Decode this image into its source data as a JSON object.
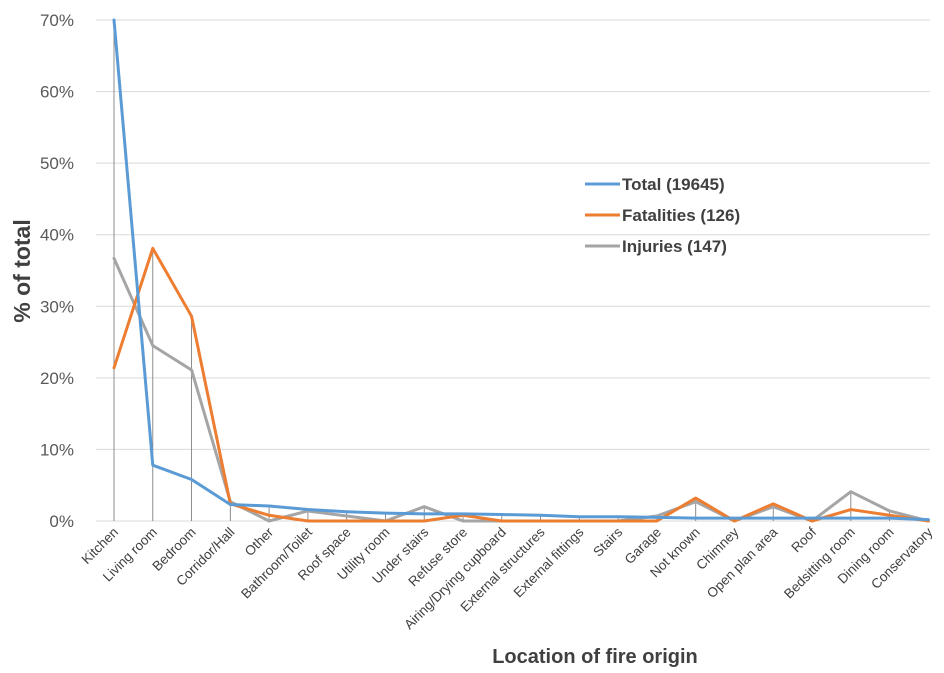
{
  "chart_data": {
    "type": "line",
    "title": "",
    "xlabel": "Location of fire origin",
    "ylabel": "% of total",
    "ylim": [
      0,
      70
    ],
    "yticks": [
      0,
      10,
      20,
      30,
      40,
      50,
      60,
      70
    ],
    "ytick_labels": [
      "0%",
      "10%",
      "20%",
      "30%",
      "40%",
      "50%",
      "60%",
      "70%"
    ],
    "grid": "horizontal",
    "legend_position": "center-right",
    "categories": [
      "Kitchen",
      "Living room",
      "Bedroom",
      "Corridor/Hall",
      "Other",
      "Bathroom/Toilet",
      "Roof space",
      "Utility room",
      "Under stairs",
      "Refuse store",
      "Airing/Drying cupboard",
      "External structures",
      "External fittings",
      "Stairs",
      "Garage",
      "Not known",
      "Chimney",
      "Open plan area",
      "Roof",
      "Bedsitting room",
      "Dining room",
      "Conservatory"
    ],
    "series": [
      {
        "name": "Total (19645)",
        "color": "#5b9bd5",
        "values": [
          70,
          7.8,
          5.8,
          2.3,
          2.1,
          1.6,
          1.3,
          1.1,
          1.0,
          1.0,
          0.9,
          0.8,
          0.6,
          0.6,
          0.5,
          0.4,
          0.4,
          0.4,
          0.4,
          0.4,
          0.4,
          0.2
        ]
      },
      {
        "name": "Fatalities (126)",
        "color": "#ed7d31",
        "values": [
          21.4,
          38.1,
          28.6,
          2.4,
          0.8,
          0,
          0,
          0,
          0,
          0.8,
          0,
          0,
          0,
          0,
          0,
          3.2,
          0,
          2.4,
          0,
          1.6,
          0.8,
          0
        ]
      },
      {
        "name": "Injuries (147)",
        "color": "#a5a5a5",
        "values": [
          36.7,
          24.5,
          21.1,
          2.7,
          0,
          1.4,
          0.7,
          0,
          2.0,
          0,
          0,
          0,
          0,
          0,
          0.7,
          2.7,
          0,
          2.0,
          0,
          4.1,
          1.4,
          0
        ]
      }
    ]
  }
}
